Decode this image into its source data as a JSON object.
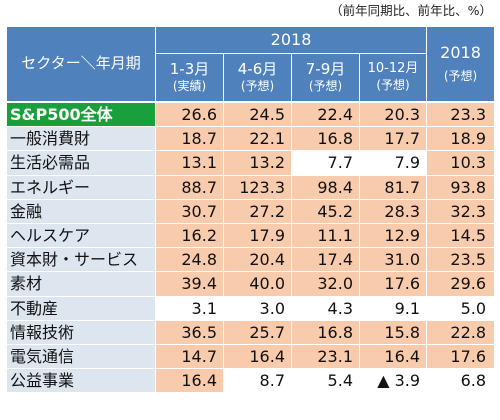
{
  "note": "（前年同期比、前年比、%）",
  "header": {
    "corner": "セクター＼年月期",
    "group_year": "2018",
    "periods": [
      {
        "label": "1-3月",
        "sub": "(実績)"
      },
      {
        "label": "4-6月",
        "sub": "(予想)"
      },
      {
        "label": "7-9月",
        "sub": "(予想)"
      },
      {
        "label": "10-12月",
        "sub": "(予想)"
      }
    ],
    "annual": {
      "label": "2018",
      "sub": "(予想)"
    }
  },
  "rows": [
    {
      "sector": "S&P500全体",
      "values": [
        "26.6",
        "24.5",
        "22.4",
        "20.3",
        "23.3"
      ]
    },
    {
      "sector": "一般消費財",
      "values": [
        "18.7",
        "22.1",
        "16.8",
        "17.7",
        "18.9"
      ]
    },
    {
      "sector": "生活必需品",
      "values": [
        "13.1",
        "13.2",
        "7.7",
        "7.9",
        "10.3"
      ]
    },
    {
      "sector": "エネルギー",
      "values": [
        "88.7",
        "123.3",
        "98.4",
        "81.7",
        "93.8"
      ]
    },
    {
      "sector": "金融",
      "values": [
        "30.7",
        "27.2",
        "45.2",
        "28.3",
        "32.3"
      ]
    },
    {
      "sector": "ヘルスケア",
      "values": [
        "16.2",
        "17.9",
        "11.1",
        "12.9",
        "14.5"
      ]
    },
    {
      "sector": "資本財・サービス",
      "values": [
        "24.8",
        "20.4",
        "17.4",
        "31.0",
        "23.5"
      ]
    },
    {
      "sector": "素材",
      "values": [
        "39.4",
        "40.0",
        "32.0",
        "17.6",
        "29.6"
      ]
    },
    {
      "sector": "不動産",
      "values": [
        "3.1",
        "3.0",
        "4.3",
        "9.1",
        "5.0"
      ]
    },
    {
      "sector": "情報技術",
      "values": [
        "36.5",
        "25.7",
        "16.8",
        "15.8",
        "22.8"
      ]
    },
    {
      "sector": "電気通信",
      "values": [
        "14.7",
        "16.4",
        "23.1",
        "16.4",
        "17.6"
      ]
    },
    {
      "sector": "公益事業",
      "values": [
        "16.4",
        "8.7",
        "5.4",
        "▲ 3.9",
        "6.8"
      ]
    }
  ],
  "colors": {
    "header_bg": "#4f81bd",
    "label_bg": "#dde6ee",
    "highlight_bg": "#19a03c",
    "value_bg": "#f8cbad",
    "plain_bg": "#ffffff"
  }
}
